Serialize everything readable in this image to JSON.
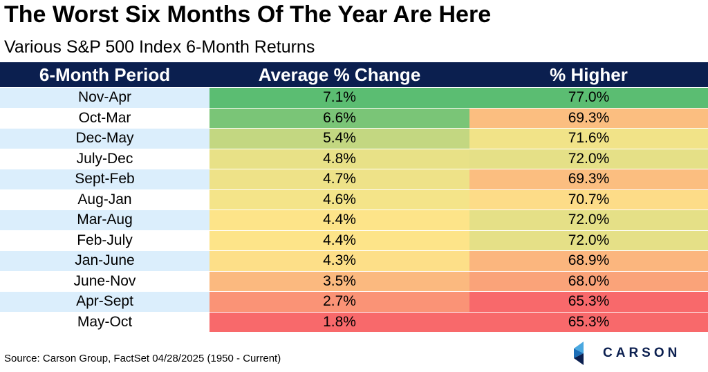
{
  "title": "The Worst Six Months Of The Year Are Here",
  "subtitle": "Various S&P 500 Index 6-Month Returns",
  "source": "Source: Carson Group, FactSet 04/28/2025 (1950 - Current)",
  "logo": {
    "name": "CARSON",
    "icon": "carson-chevron-logo-icon"
  },
  "colors": {
    "header_bg": "#0b1f4f",
    "row_band_blue": "#dbeefc",
    "row_band_white": "#ffffff",
    "heat_high": "#5bbd72",
    "heat_mid": "#fde68a",
    "heat_low": "#f8696b"
  },
  "chart_data": {
    "type": "table",
    "columns": [
      "6-Month Period",
      "Average % Change",
      "% Higher"
    ],
    "rows": [
      {
        "period": "Nov-Apr",
        "avg_change": "7.1%",
        "pct_higher": "77.0%"
      },
      {
        "period": "Oct-Mar",
        "avg_change": "6.6%",
        "pct_higher": "69.3%"
      },
      {
        "period": "Dec-May",
        "avg_change": "5.4%",
        "pct_higher": "71.6%"
      },
      {
        "period": "July-Dec",
        "avg_change": "4.8%",
        "pct_higher": "72.0%"
      },
      {
        "period": "Sept-Feb",
        "avg_change": "4.7%",
        "pct_higher": "69.3%"
      },
      {
        "period": "Aug-Jan",
        "avg_change": "4.6%",
        "pct_higher": "70.7%"
      },
      {
        "period": "Mar-Aug",
        "avg_change": "4.4%",
        "pct_higher": "72.0%"
      },
      {
        "period": "Feb-July",
        "avg_change": "4.4%",
        "pct_higher": "72.0%"
      },
      {
        "period": "Jan-June",
        "avg_change": "4.3%",
        "pct_higher": "68.9%"
      },
      {
        "period": "June-Nov",
        "avg_change": "3.5%",
        "pct_higher": "68.0%"
      },
      {
        "period": "Apr-Sept",
        "avg_change": "2.7%",
        "pct_higher": "65.3%"
      },
      {
        "period": "May-Oct",
        "avg_change": "1.8%",
        "pct_higher": "65.3%"
      }
    ],
    "heatmap_ranges": {
      "avg_change": [
        1.8,
        7.1
      ],
      "pct_higher": [
        65.3,
        77.0
      ]
    }
  }
}
